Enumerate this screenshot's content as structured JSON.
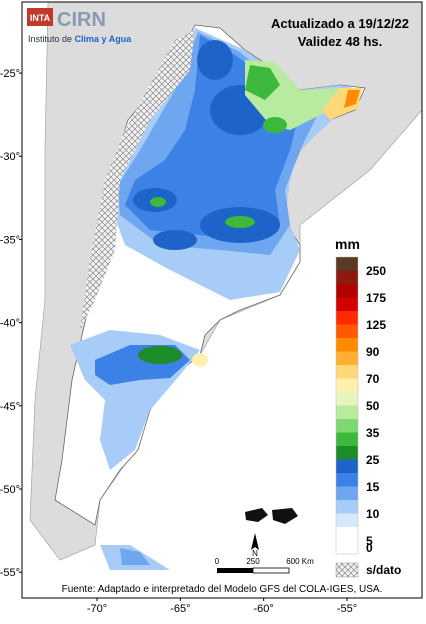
{
  "header": {
    "logo_badge": "INTA",
    "logo_name": "CIRN",
    "logo_subtitle_1": "Instituto de ",
    "logo_subtitle_2": "Clima y Agua",
    "updated": "Actualizado a 19/12/22",
    "validity": "Validez 48 hs."
  },
  "axes": {
    "latlim": [
      -20.73,
      -56.55
    ],
    "lonlim": [
      -74.5,
      -50.5
    ],
    "lat_ticks": [
      {
        "value": -25,
        "label": "-25°"
      },
      {
        "value": -30,
        "label": "-30°"
      },
      {
        "value": -35,
        "label": "-35°"
      },
      {
        "value": -40,
        "label": "-40°"
      },
      {
        "value": -45,
        "label": "-45°"
      },
      {
        "value": -50,
        "label": "-50°"
      },
      {
        "value": -55,
        "label": "-55°"
      }
    ],
    "lon_ticks": [
      {
        "value": -70,
        "label": "-70°"
      },
      {
        "value": -65,
        "label": "-65°"
      },
      {
        "value": -60,
        "label": "-60°"
      },
      {
        "value": -55,
        "label": "-55°"
      }
    ]
  },
  "legend": {
    "title": "mm",
    "colors": [
      "#5a3a22",
      "#8b1a10",
      "#b00000",
      "#d40000",
      "#ff2a00",
      "#ff5a00",
      "#ff8c00",
      "#ffb030",
      "#ffd878",
      "#fff0b0",
      "#e6f5c0",
      "#b8eaa0",
      "#7cd870",
      "#3cb83c",
      "#1e8c28",
      "#1e64c8",
      "#3c82e6",
      "#6ea6f0",
      "#a8ccf8",
      "#d8e8fc",
      "#ffffff",
      "#ffffff"
    ],
    "labels": [
      "250",
      "175",
      "125",
      "90",
      "70",
      "50",
      "35",
      "25",
      "15",
      "10",
      "5",
      "0"
    ],
    "no_data": "s/dato"
  },
  "scale_bar": {
    "labels": [
      "0",
      "250",
      "600 Km"
    ]
  },
  "north": "N",
  "source": "Fuente: Adaptado e interpretado del Modelo GFS del COLA-IGES, USA."
}
